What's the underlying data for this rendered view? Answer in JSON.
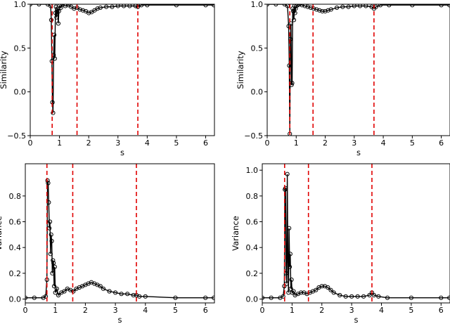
{
  "chart_data": [
    {
      "type": "scatter",
      "xlabel": "s",
      "ylabel": "Similarity",
      "xlim": [
        0,
        6.3
      ],
      "ylim": [
        -0.5,
        1.0
      ],
      "xticks": [
        "0",
        "1",
        "2",
        "3",
        "4",
        "5",
        "6"
      ],
      "yticks": [
        "−0.5",
        "0.0",
        "0.5",
        "1.0"
      ],
      "xtick_values": [
        0,
        1,
        2,
        3,
        4,
        5,
        6
      ],
      "ytick_values": [
        -0.5,
        0.0,
        0.5,
        1.0
      ],
      "marker": "open-circle-connected",
      "line_color": "#000000",
      "vlines": [
        0.75,
        1.6,
        3.68
      ],
      "vline_color": "#e00000",
      "vline_style": "dashed",
      "series": [
        {
          "x": [
            0,
            0.3,
            0.6,
            0.7,
            0.72,
            0.74,
            0.76,
            0.78,
            0.8,
            0.82,
            0.84,
            0.86,
            0.88,
            0.9,
            0.92,
            0.94,
            0.96,
            0.98,
            1.0,
            1.05,
            1.1,
            1.2,
            1.3,
            1.4,
            1.5,
            1.6,
            1.7,
            1.8,
            1.9,
            2.0,
            2.1,
            2.2,
            2.3,
            2.4,
            2.6,
            2.8,
            3.0,
            3.2,
            3.4,
            3.6,
            3.68,
            3.8,
            4.0,
            5.0,
            6.0,
            6.28
          ],
          "y": [
            1.0,
            1.0,
            1.0,
            0.98,
            0.82,
            0.35,
            -0.12,
            -0.24,
            0.42,
            0.65,
            0.38,
            0.9,
            0.97,
            0.85,
            0.93,
            0.95,
            0.78,
            0.92,
            0.98,
            0.96,
            1.0,
            0.98,
            0.99,
            0.97,
            0.95,
            0.96,
            0.94,
            0.93,
            0.92,
            0.9,
            0.91,
            0.93,
            0.95,
            0.96,
            0.97,
            0.97,
            0.98,
            0.98,
            0.98,
            0.98,
            0.97,
            0.99,
            0.99,
            0.99,
            0.99,
            0.99
          ]
        }
      ]
    },
    {
      "type": "scatter",
      "xlabel": "s",
      "ylabel": "Similarity",
      "xlim": [
        0,
        6.3
      ],
      "ylim": [
        -0.5,
        1.0
      ],
      "xticks": [
        "0",
        "1",
        "2",
        "3",
        "4",
        "5",
        "6"
      ],
      "yticks": [
        "−0.5",
        "0.0",
        "0.5",
        "1.0"
      ],
      "xtick_values": [
        0,
        1,
        2,
        3,
        4,
        5,
        6
      ],
      "ytick_values": [
        -0.5,
        0.0,
        0.5,
        1.0
      ],
      "marker": "open-circle-connected",
      "line_color": "#000000",
      "vlines": [
        0.78,
        1.58,
        3.68
      ],
      "vline_color": "#e00000",
      "vline_style": "dashed",
      "series": [
        {
          "x": [
            0,
            0.3,
            0.6,
            0.7,
            0.74,
            0.76,
            0.78,
            0.8,
            0.82,
            0.84,
            0.86,
            0.88,
            0.9,
            0.92,
            0.94,
            0.96,
            0.98,
            1.0,
            1.05,
            1.1,
            1.2,
            1.3,
            1.4,
            1.5,
            1.6,
            1.7,
            1.8,
            1.9,
            2.0,
            2.1,
            2.2,
            2.4,
            2.6,
            2.8,
            3.0,
            3.2,
            3.4,
            3.6,
            3.68,
            3.75,
            3.9,
            4.2,
            5.0,
            6.0,
            6.28
          ],
          "y": [
            1.0,
            1.0,
            1.0,
            0.98,
            0.75,
            0.3,
            -0.48,
            0.6,
            0.78,
            0.08,
            0.1,
            0.95,
            0.92,
            0.82,
            0.98,
            0.9,
            0.95,
            0.98,
            0.99,
            1.0,
            0.99,
            0.98,
            0.97,
            0.96,
            0.95,
            0.94,
            0.93,
            0.92,
            0.92,
            0.93,
            0.94,
            0.96,
            0.97,
            0.97,
            0.98,
            0.98,
            0.98,
            0.97,
            0.95,
            0.97,
            0.99,
            0.99,
            0.99,
            0.99,
            0.99
          ]
        }
      ]
    },
    {
      "type": "scatter",
      "xlabel": "s",
      "ylabel": "Variance",
      "xlim": [
        0,
        6.3
      ],
      "ylim": [
        -0.03,
        1.05
      ],
      "xticks": [
        "0",
        "1",
        "2",
        "3",
        "4",
        "5",
        "6"
      ],
      "yticks": [
        "0.0",
        "0.2",
        "0.4",
        "0.6",
        "0.8"
      ],
      "xtick_values": [
        0,
        1,
        2,
        3,
        4,
        5,
        6
      ],
      "ytick_values": [
        0.0,
        0.2,
        0.4,
        0.6,
        0.8
      ],
      "marker": "open-circle-connected",
      "line_color": "#000000",
      "vlines": [
        0.72,
        1.58,
        3.7
      ],
      "vline_color": "#e00000",
      "vline_style": "dashed",
      "series": [
        {
          "x": [
            0,
            0.3,
            0.6,
            0.68,
            0.72,
            0.74,
            0.76,
            0.78,
            0.8,
            0.82,
            0.84,
            0.86,
            0.88,
            0.9,
            0.92,
            0.94,
            0.96,
            0.98,
            1.0,
            1.05,
            1.1,
            1.2,
            1.3,
            1.4,
            1.5,
            1.6,
            1.7,
            1.8,
            1.9,
            2.0,
            2.1,
            2.2,
            2.3,
            2.4,
            2.5,
            2.6,
            2.8,
            3.0,
            3.2,
            3.4,
            3.6,
            3.7,
            3.8,
            4.0,
            5.0,
            6.0,
            6.28
          ],
          "y": [
            0.01,
            0.01,
            0.01,
            0.02,
            0.15,
            0.92,
            0.9,
            0.75,
            0.55,
            0.6,
            0.35,
            0.5,
            0.45,
            0.2,
            0.3,
            0.28,
            0.1,
            0.25,
            0.05,
            0.08,
            0.03,
            0.05,
            0.06,
            0.08,
            0.07,
            0.06,
            0.08,
            0.09,
            0.1,
            0.11,
            0.12,
            0.13,
            0.12,
            0.11,
            0.1,
            0.08,
            0.06,
            0.05,
            0.04,
            0.04,
            0.03,
            0.03,
            0.02,
            0.02,
            0.01,
            0.01,
            0.01
          ]
        }
      ]
    },
    {
      "type": "scatter",
      "xlabel": "s",
      "ylabel": "Variance",
      "xlim": [
        0,
        6.3
      ],
      "ylim": [
        -0.03,
        1.05
      ],
      "xticks": [
        "0",
        "1",
        "2",
        "3",
        "4",
        "5",
        "6"
      ],
      "yticks": [
        "0.0",
        "0.2",
        "0.4",
        "0.6",
        "0.8",
        "1.0"
      ],
      "xtick_values": [
        0,
        1,
        2,
        3,
        4,
        5,
        6
      ],
      "ytick_values": [
        0.0,
        0.2,
        0.4,
        0.6,
        0.8,
        1.0
      ],
      "marker": "open-circle-connected",
      "line_color": "#000000",
      "vlines": [
        0.75,
        1.55,
        3.68
      ],
      "vline_color": "#e00000",
      "vline_style": "dashed",
      "series": [
        {
          "x": [
            0,
            0.3,
            0.6,
            0.7,
            0.74,
            0.76,
            0.78,
            0.8,
            0.82,
            0.84,
            0.86,
            0.88,
            0.9,
            0.92,
            0.94,
            0.96,
            0.98,
            1.0,
            1.05,
            1.1,
            1.2,
            1.3,
            1.4,
            1.5,
            1.6,
            1.7,
            1.8,
            1.9,
            2.0,
            2.1,
            2.2,
            2.3,
            2.4,
            2.6,
            2.8,
            3.0,
            3.2,
            3.4,
            3.6,
            3.68,
            3.75,
            3.9,
            4.2,
            5.0,
            6.0,
            6.28
          ],
          "y": [
            0.01,
            0.01,
            0.01,
            0.02,
            0.1,
            0.85,
            0.86,
            0.2,
            0.12,
            0.97,
            0.3,
            0.05,
            0.55,
            0.25,
            0.35,
            0.08,
            0.15,
            0.05,
            0.06,
            0.03,
            0.04,
            0.05,
            0.05,
            0.04,
            0.05,
            0.06,
            0.07,
            0.09,
            0.1,
            0.1,
            0.09,
            0.07,
            0.05,
            0.03,
            0.02,
            0.02,
            0.02,
            0.02,
            0.03,
            0.05,
            0.03,
            0.02,
            0.01,
            0.01,
            0.01,
            0.01
          ]
        }
      ]
    }
  ]
}
